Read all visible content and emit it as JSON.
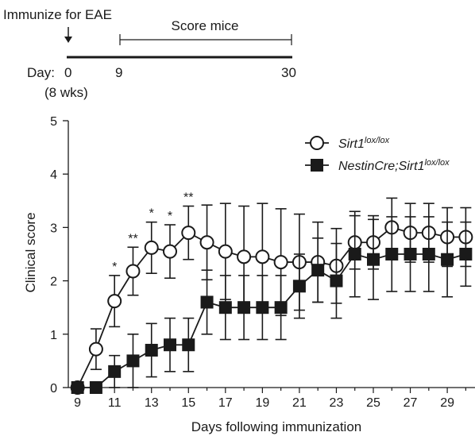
{
  "timeline": {
    "immunize_label": "Immunize for EAE",
    "score_label": "Score mice",
    "day_label": "Day:",
    "ticks": [
      "0",
      "9",
      "30"
    ],
    "age_label": "(8 wks)"
  },
  "chart_data": {
    "type": "line",
    "title": "",
    "xlabel": "Days following immunization",
    "ylabel": "Clinical score",
    "xlim": [
      8.5,
      30.5
    ],
    "ylim": [
      0,
      5
    ],
    "x_ticks": [
      9,
      11,
      13,
      15,
      17,
      19,
      21,
      23,
      25,
      27,
      29
    ],
    "y_ticks": [
      0,
      1,
      2,
      3,
      4,
      5
    ],
    "legend_position": "top-right",
    "x": [
      9,
      10,
      11,
      12,
      13,
      14,
      15,
      16,
      17,
      18,
      19,
      20,
      21,
      22,
      23,
      24,
      25,
      26,
      27,
      28,
      29,
      30
    ],
    "series": [
      {
        "name_main": "Sirt1",
        "name_sup": "lox/lox",
        "marker": "open-circle",
        "values": [
          0,
          0.72,
          1.62,
          2.18,
          2.62,
          2.55,
          2.9,
          2.72,
          2.55,
          2.45,
          2.45,
          2.35,
          2.35,
          2.35,
          2.28,
          2.72,
          2.72,
          3.0,
          2.9,
          2.9,
          2.82,
          2.82
        ],
        "errors": [
          0,
          0.38,
          0.48,
          0.45,
          0.48,
          0.5,
          0.5,
          0.7,
          0.9,
          0.95,
          1.0,
          1.0,
          0.9,
          0.75,
          0.7,
          0.5,
          0.5,
          0.55,
          0.55,
          0.55,
          0.55,
          0.55
        ]
      },
      {
        "name_main": "NestinCre;Sirt1",
        "name_sup": "lox/lox",
        "marker": "filled-square",
        "values": [
          0,
          0,
          0.3,
          0.5,
          0.7,
          0.8,
          0.8,
          1.6,
          1.5,
          1.5,
          1.5,
          1.5,
          1.9,
          2.2,
          2.0,
          2.5,
          2.4,
          2.5,
          2.5,
          2.5,
          2.4,
          2.5
        ],
        "errors": [
          0,
          0,
          0.3,
          0.5,
          0.5,
          0.5,
          0.5,
          0.6,
          0.6,
          0.6,
          0.6,
          0.6,
          0.6,
          0.6,
          0.7,
          0.8,
          0.75,
          0.7,
          0.7,
          0.7,
          0.7,
          0.6
        ]
      }
    ],
    "significance": [
      {
        "x": 11,
        "label": "*"
      },
      {
        "x": 12,
        "label": "**"
      },
      {
        "x": 13,
        "label": "*"
      },
      {
        "x": 14,
        "label": "*"
      },
      {
        "x": 15,
        "label": "**"
      }
    ]
  }
}
